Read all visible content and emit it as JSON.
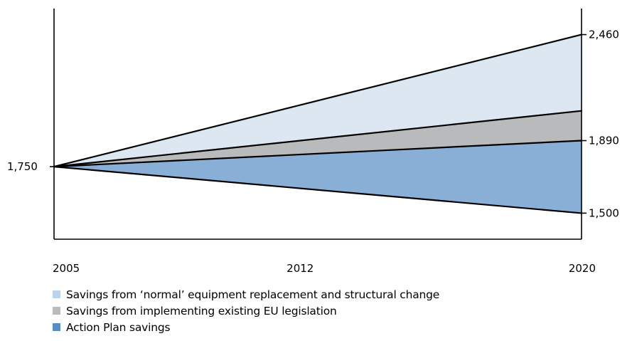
{
  "chart_data": {
    "type": "area",
    "x": [
      2005,
      2012,
      2020
    ],
    "x_tick_labels": [
      "2005",
      "2012",
      "2020"
    ],
    "start_value": 1750,
    "start_label": "1,750",
    "end_values": {
      "baseline": 2460,
      "after_existing_legislation": 2050,
      "after_normal_savings": 1890,
      "after_action_plan": 1500
    },
    "end_labels": [
      "2,460",
      "1,890",
      "1,500"
    ],
    "end_label_values": [
      2460,
      1890,
      1500
    ],
    "ylim": [
      1360,
      2600
    ],
    "series": [
      {
        "name": "Savings from 'normal' equipment replacement and structural change",
        "from": "baseline",
        "to": "after_existing_legislation",
        "color": "#dde7f2"
      },
      {
        "name": "Savings from implementing existing EU legislation",
        "from": "after_existing_legislation",
        "to": "after_normal_savings",
        "color": "#b9babc"
      },
      {
        "name": "Action Plan savings",
        "from": "after_normal_savings",
        "to": "after_action_plan",
        "color": "#8aafd6"
      }
    ],
    "legend": [
      {
        "label": "Savings from ‘normal’ equipment replacement and structural change",
        "color": "#bcd3e9"
      },
      {
        "label": "Savings from implementing existing EU legislation",
        "color": "#b9babc"
      },
      {
        "label": "Action Plan savings",
        "color": "#5b8cc5"
      }
    ],
    "grid": false,
    "legend_position": "bottom-left"
  }
}
